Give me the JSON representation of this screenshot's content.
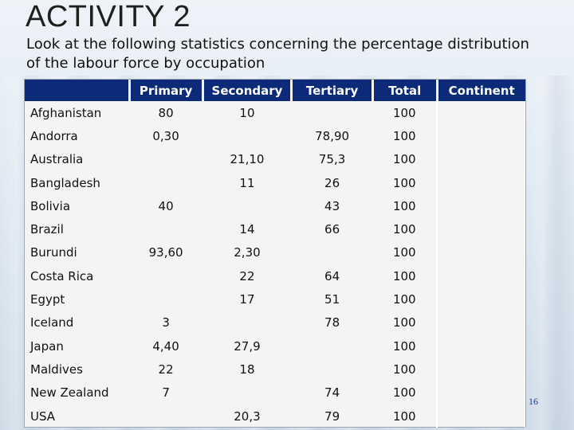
{
  "title": "ACTIVITY 2",
  "subtitle": "Look at the following statistics concerning the percentage distribution of the labour force by occupation",
  "table": {
    "headers": [
      "",
      "Primary",
      "Secondary",
      "Tertiary",
      "Total",
      "Continent"
    ],
    "rows": [
      {
        "country": "Afghanistan",
        "primary": "80",
        "secondary": "10",
        "tertiary": "",
        "total": "100",
        "continent": ""
      },
      {
        "country": "Andorra",
        "primary": "0,30",
        "secondary": "",
        "tertiary": "78,90",
        "total": "100",
        "continent": ""
      },
      {
        "country": "Australia",
        "primary": "",
        "secondary": "21,10",
        "tertiary": "75,3",
        "total": "100",
        "continent": ""
      },
      {
        "country": "Bangladesh",
        "primary": "",
        "secondary": "11",
        "tertiary": "26",
        "total": "100",
        "continent": ""
      },
      {
        "country": "Bolivia",
        "primary": "40",
        "secondary": "",
        "tertiary": "43",
        "total": "100",
        "continent": ""
      },
      {
        "country": "Brazil",
        "primary": "",
        "secondary": "14",
        "tertiary": "66",
        "total": "100",
        "continent": ""
      },
      {
        "country": "Burundi",
        "primary": "93,60",
        "secondary": "2,30",
        "tertiary": "",
        "total": "100",
        "continent": ""
      },
      {
        "country": "Costa Rica",
        "primary": "",
        "secondary": "22",
        "tertiary": "64",
        "total": "100",
        "continent": ""
      },
      {
        "country": "Egypt",
        "primary": "",
        "secondary": "17",
        "tertiary": "51",
        "total": "100",
        "continent": ""
      },
      {
        "country": "Iceland",
        "primary": "3",
        "secondary": "",
        "tertiary": "78",
        "total": "100",
        "continent": ""
      },
      {
        "country": "Japan",
        "primary": "4,40",
        "secondary": "27,9",
        "tertiary": "",
        "total": "100",
        "continent": ""
      },
      {
        "country": "Maldives",
        "primary": "22",
        "secondary": "18",
        "tertiary": "",
        "total": "100",
        "continent": ""
      },
      {
        "country": "New Zealand",
        "primary": "7",
        "secondary": "",
        "tertiary": "74",
        "total": "100",
        "continent": ""
      },
      {
        "country": "USA",
        "primary": "",
        "secondary": "20,3",
        "tertiary": "79",
        "total": "100",
        "continent": ""
      }
    ]
  },
  "page_number": "16",
  "colors": {
    "header_bg": "#0c2a78",
    "header_text": "#ffffff",
    "table_bg": "#f4f4f4"
  }
}
